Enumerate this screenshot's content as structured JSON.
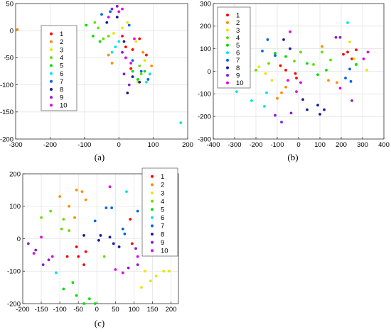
{
  "colors": [
    "#ff0000",
    "#ff8c00",
    "#e6e600",
    "#66e000",
    "#00e000",
    "#00e6e6",
    "#0064e6",
    "#1a1a99",
    "#8c1ad9",
    "#e600e6"
  ],
  "chart_data": [
    {
      "type": "scatter",
      "caption": "(a)",
      "xlim": [
        -300,
        200
      ],
      "ylim": [
        -200,
        50
      ],
      "xticks": [
        -300,
        -200,
        -100,
        0,
        100,
        200
      ],
      "yticks": [
        -200,
        -150,
        -100,
        -50,
        0,
        50
      ],
      "grid": true,
      "legend": {
        "position": "top-left",
        "entries": [
          "1",
          "2",
          "3",
          "4",
          "5",
          "6",
          "7",
          "8",
          "9",
          "10"
        ]
      },
      "series": [
        {
          "name": "1",
          "points": [
            [
              60,
              -15
            ],
            [
              40,
              -35
            ],
            [
              20,
              -30
            ],
            [
              35,
              -70
            ],
            [
              80,
              -45
            ],
            [
              10,
              -10
            ]
          ]
        },
        {
          "name": "2",
          "points": [
            [
              -295,
              2
            ],
            [
              -30,
              -45
            ],
            [
              -20,
              -60
            ],
            [
              70,
              -40
            ],
            [
              90,
              -80
            ],
            [
              95,
              -65
            ]
          ]
        },
        {
          "name": "3",
          "points": [
            [
              -15,
              -5
            ],
            [
              10,
              5
            ],
            [
              25,
              15
            ],
            [
              50,
              -20
            ],
            [
              75,
              -55
            ],
            [
              55,
              -95
            ]
          ]
        },
        {
          "name": "4",
          "points": [
            [
              -70,
              15
            ],
            [
              -60,
              5
            ],
            [
              -45,
              -15
            ],
            [
              -30,
              -10
            ],
            [
              60,
              -65
            ],
            [
              65,
              -80
            ]
          ]
        },
        {
          "name": "5",
          "points": [
            [
              -95,
              10
            ],
            [
              -75,
              -10
            ],
            [
              -55,
              -20
            ],
            [
              40,
              -75
            ],
            [
              55,
              -90
            ],
            [
              75,
              -75
            ]
          ]
        },
        {
          "name": "6",
          "points": [
            [
              -20,
              -40
            ],
            [
              -10,
              -30
            ],
            [
              0,
              -20
            ],
            [
              80,
              -95
            ],
            [
              90,
              -80
            ],
            [
              180,
              -170
            ]
          ]
        },
        {
          "name": "7",
          "points": [
            [
              -50,
              30
            ],
            [
              -25,
              35
            ],
            [
              30,
              10
            ],
            [
              40,
              -55
            ],
            [
              65,
              -75
            ],
            [
              85,
              -90
            ]
          ]
        },
        {
          "name": "8",
          "points": [
            [
              -35,
              15
            ],
            [
              -5,
              25
            ],
            [
              15,
              -20
            ],
            [
              25,
              -115
            ],
            [
              60,
              -95
            ],
            [
              40,
              -85
            ]
          ]
        },
        {
          "name": "9",
          "points": [
            [
              -20,
              40
            ],
            [
              -5,
              45
            ],
            [
              5,
              60
            ],
            [
              15,
              -80
            ],
            [
              30,
              -100
            ],
            [
              10,
              -40
            ]
          ]
        },
        {
          "name": "10",
          "points": [
            [
              -30,
              25
            ],
            [
              0,
              35
            ],
            [
              10,
              40
            ],
            [
              20,
              -50
            ],
            [
              35,
              -60
            ],
            [
              45,
              -15
            ]
          ]
        }
      ]
    },
    {
      "type": "scatter",
      "caption": "(b)",
      "xlim": [
        -400,
        400
      ],
      "ylim": [
        -300,
        300
      ],
      "xticks": [
        -400,
        -300,
        -200,
        -100,
        0,
        100,
        200,
        300,
        400
      ],
      "yticks": [
        -300,
        -200,
        -100,
        0,
        100,
        200,
        300
      ],
      "grid": true,
      "legend": {
        "position": "top-left",
        "entries": [
          "1",
          "2",
          "3",
          "4",
          "5",
          "6",
          "7",
          "8",
          "9",
          "10"
        ]
      },
      "series": [
        {
          "name": "1",
          "points": [
            [
              -85,
              25
            ],
            [
              -60,
              5
            ],
            [
              -15,
              -10
            ],
            [
              -10,
              -30
            ],
            [
              230,
              85
            ],
            [
              270,
              95
            ],
            [
              250,
              55
            ],
            [
              210,
              75
            ]
          ]
        },
        {
          "name": "2",
          "points": [
            [
              -100,
              -120
            ],
            [
              -80,
              -95
            ],
            [
              -60,
              -70
            ],
            [
              110,
              110
            ],
            [
              140,
              -40
            ],
            [
              180,
              -50
            ]
          ]
        },
        {
          "name": "3",
          "points": [
            [
              -185,
              20
            ],
            [
              -155,
              -10
            ],
            [
              -125,
              -40
            ],
            [
              240,
              130
            ],
            [
              260,
              55
            ],
            [
              320,
              5
            ]
          ]
        },
        {
          "name": "4",
          "points": [
            [
              -200,
              5
            ],
            [
              -140,
              35
            ],
            [
              -20,
              45
            ],
            [
              10,
              85
            ],
            [
              70,
              30
            ],
            [
              150,
              50
            ],
            [
              110,
              85
            ]
          ]
        },
        {
          "name": "5",
          "points": [
            [
              -110,
              80
            ],
            [
              -60,
              65
            ],
            [
              40,
              35
            ],
            [
              90,
              -15
            ],
            [
              130,
              5
            ],
            [
              270,
              30
            ]
          ]
        },
        {
          "name": "6",
          "points": [
            [
              -290,
              -90
            ],
            [
              -220,
              -130
            ],
            [
              -160,
              -155
            ],
            [
              -150,
              -95
            ],
            [
              230,
              215
            ]
          ]
        },
        {
          "name": "7",
          "points": [
            [
              -170,
              90
            ],
            [
              -145,
              140
            ],
            [
              -110,
              70
            ],
            [
              220,
              -30
            ],
            [
              245,
              -45
            ],
            [
              240,
              10
            ]
          ]
        },
        {
          "name": "8",
          "points": [
            [
              -70,
              140
            ],
            [
              -40,
              100
            ],
            [
              20,
              -125
            ],
            [
              40,
              -170
            ],
            [
              90,
              -150
            ],
            [
              100,
              -190
            ],
            [
              120,
              -170
            ]
          ]
        },
        {
          "name": "9",
          "points": [
            [
              -110,
              -195
            ],
            [
              -80,
              -225
            ],
            [
              -35,
              -185
            ],
            [
              175,
              150
            ],
            [
              195,
              150
            ],
            [
              250,
              -130
            ]
          ]
        },
        {
          "name": "10",
          "points": [
            [
              -40,
              175
            ],
            [
              -50,
              -40
            ],
            [
              -10,
              -90
            ],
            [
              10,
              -50
            ],
            [
              195,
              -75
            ],
            [
              305,
              55
            ],
            [
              325,
              85
            ]
          ]
        }
      ]
    },
    {
      "type": "scatter",
      "caption": "(c)",
      "xlim": [
        -200,
        220
      ],
      "ylim": [
        -200,
        200
      ],
      "xticks": [
        -200,
        -150,
        -100,
        -50,
        0,
        50,
        100,
        150,
        200
      ],
      "yticks": [
        -200,
        -100,
        0,
        100,
        200
      ],
      "grid": true,
      "legend": {
        "position": "top-right",
        "entries": [
          "1",
          "2",
          "3",
          "4",
          "5",
          "6",
          "7",
          "8",
          "9",
          "10"
        ]
      },
      "series": [
        {
          "name": "1",
          "points": [
            [
              -80,
              -55
            ],
            [
              -55,
              -25
            ],
            [
              -50,
              -55
            ],
            [
              -35,
              -80
            ],
            [
              -30,
              -40
            ],
            [
              90,
              60
            ],
            [
              95,
              -15
            ]
          ]
        },
        {
          "name": "2",
          "points": [
            [
              -100,
              130
            ],
            [
              -75,
              100
            ],
            [
              -60,
              65
            ],
            [
              -55,
              150
            ],
            [
              -40,
              145
            ],
            [
              -30,
              120
            ]
          ]
        },
        {
          "name": "3",
          "points": [
            [
              120,
              -150
            ],
            [
              130,
              -100
            ],
            [
              145,
              -130
            ],
            [
              160,
              -115
            ],
            [
              180,
              -100
            ],
            [
              195,
              -100
            ]
          ]
        },
        {
          "name": "4",
          "points": [
            [
              -150,
              65
            ],
            [
              -125,
              85
            ],
            [
              -95,
              30
            ],
            [
              -90,
              60
            ],
            [
              -75,
              25
            ],
            [
              20,
              -55
            ]
          ]
        },
        {
          "name": "5",
          "points": [
            [
              -90,
              -155
            ],
            [
              -65,
              -135
            ],
            [
              -55,
              -175
            ],
            [
              -35,
              -200
            ],
            [
              -20,
              -185
            ],
            [
              -5,
              -200
            ]
          ]
        },
        {
          "name": "6",
          "points": [
            [
              -110,
              -105
            ],
            [
              80,
              145
            ],
            [
              125,
              120
            ],
            [
              145,
              120
            ],
            [
              160,
              85
            ],
            [
              160,
              50
            ]
          ]
        },
        {
          "name": "7",
          "points": [
            [
              -5,
              55
            ],
            [
              25,
              95
            ],
            [
              40,
              95
            ],
            [
              70,
              30
            ],
            [
              75,
              15
            ],
            [
              110,
              85
            ]
          ]
        },
        {
          "name": "8",
          "points": [
            [
              -35,
              10
            ],
            [
              5,
              -5
            ],
            [
              10,
              10
            ],
            [
              35,
              5
            ],
            [
              45,
              -15
            ],
            [
              60,
              -25
            ]
          ]
        },
        {
          "name": "9",
          "points": [
            [
              -185,
              -15
            ],
            [
              -165,
              -35
            ],
            [
              -145,
              -80
            ],
            [
              -130,
              -65
            ],
            [
              85,
              -90
            ],
            [
              105,
              -30
            ],
            [
              110,
              -80
            ]
          ]
        },
        {
          "name": "10",
          "points": [
            [
              -170,
              -45
            ],
            [
              -150,
              5
            ],
            [
              -120,
              -55
            ],
            [
              35,
              160
            ],
            [
              50,
              -95
            ],
            [
              70,
              -105
            ],
            [
              110,
              -55
            ]
          ]
        }
      ]
    }
  ]
}
